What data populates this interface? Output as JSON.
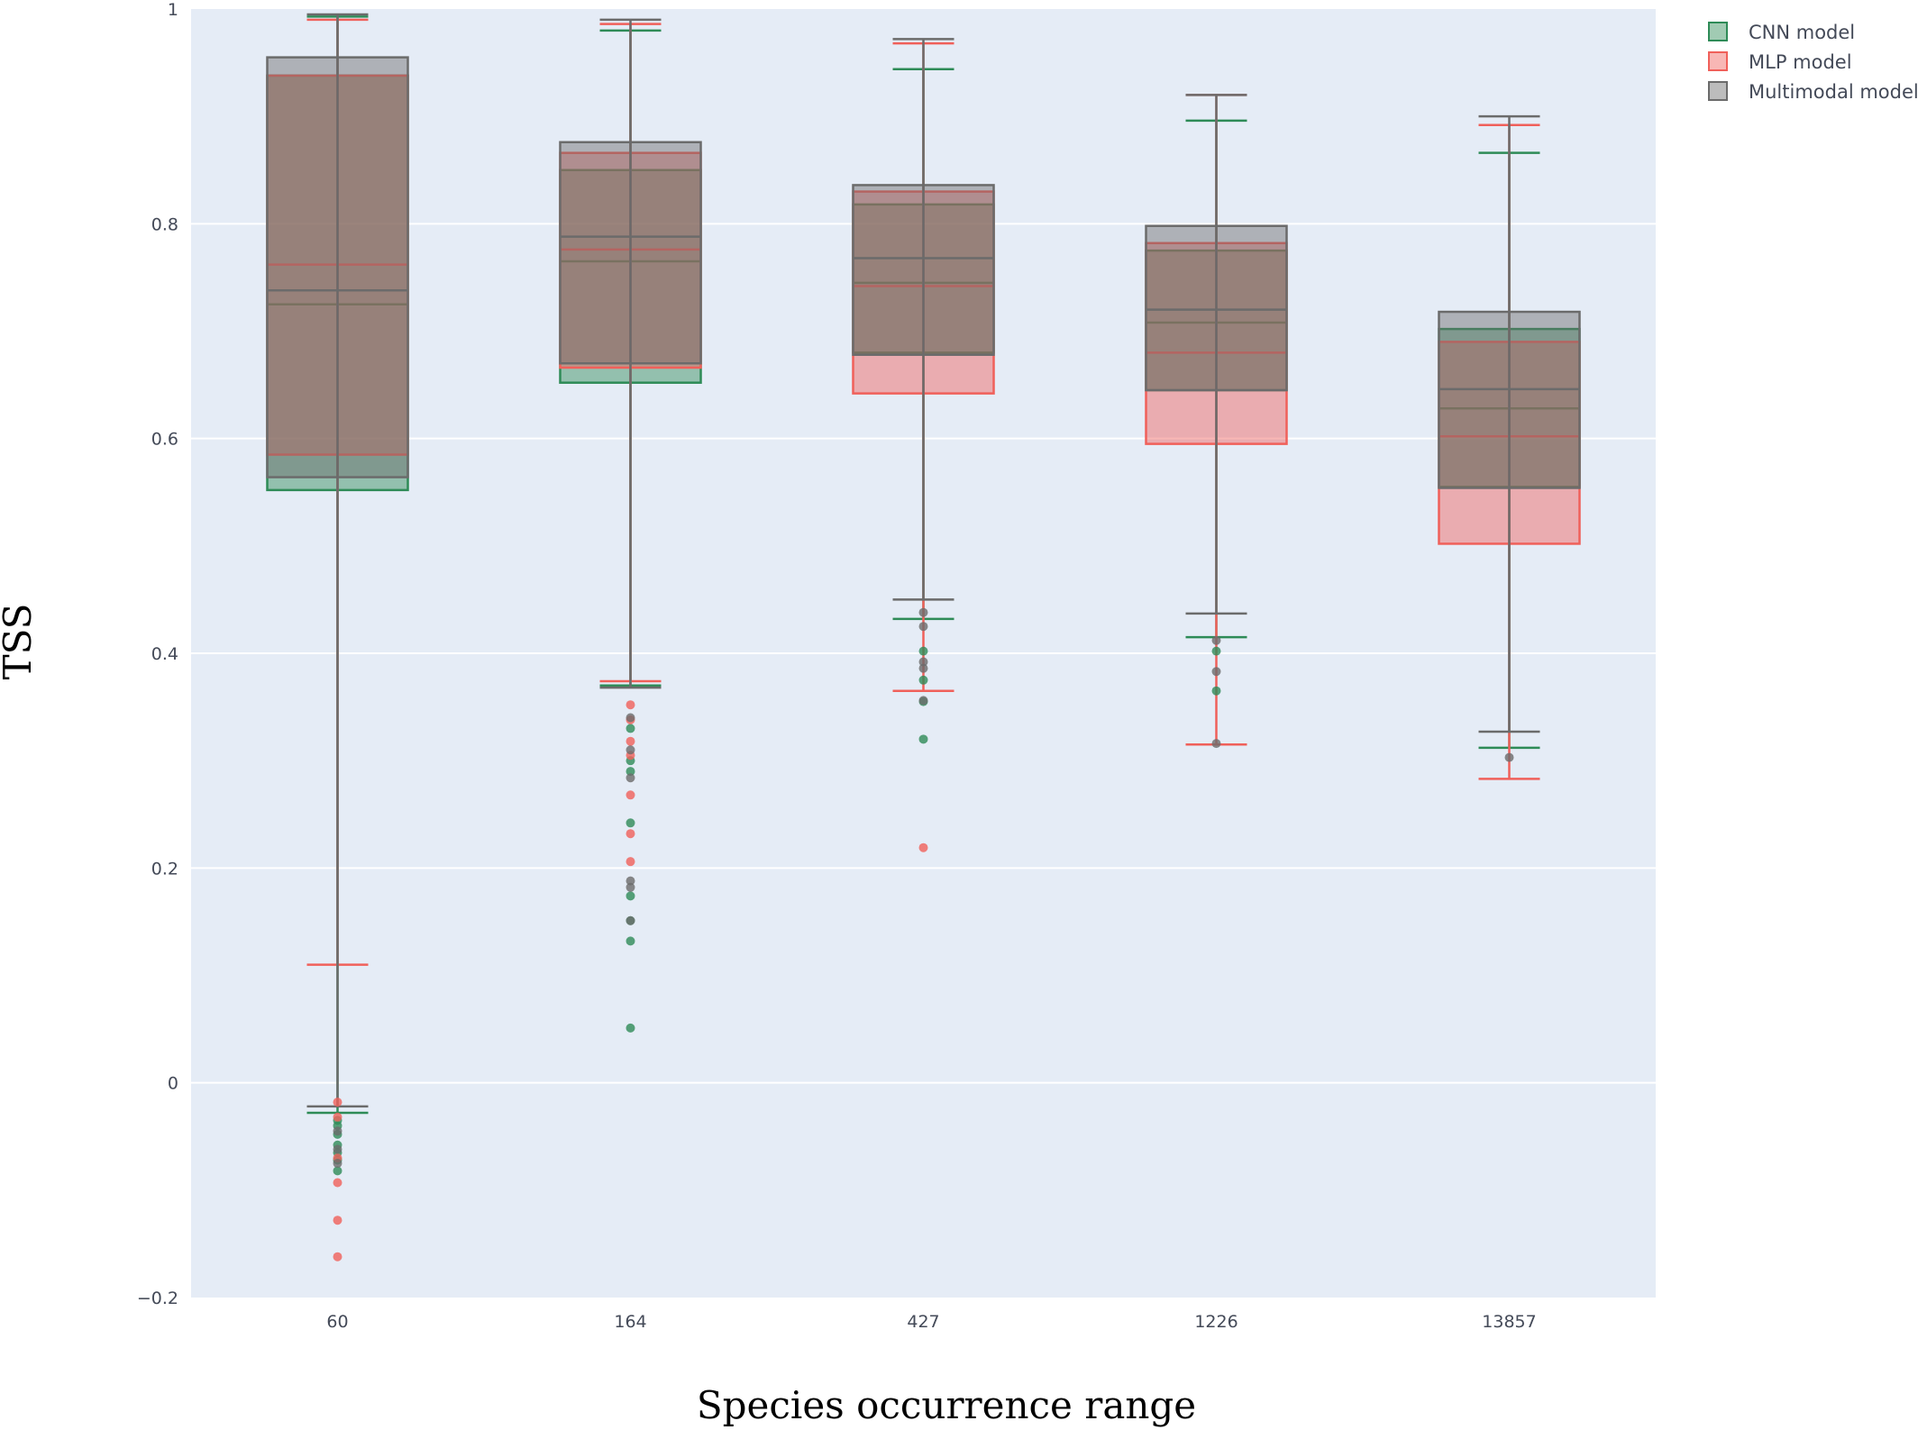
{
  "chart_data": {
    "type": "box",
    "xlabel": "Species occurrence range",
    "ylabel": "TSS",
    "categories": [
      "60",
      "164",
      "427",
      "1226",
      "13857"
    ],
    "ylim": [
      -0.2,
      1.0
    ],
    "yticks": [
      {
        "value": -0.2,
        "label": "−0.2"
      },
      {
        "value": 0,
        "label": "0"
      },
      {
        "value": 0.2,
        "label": "0.2"
      },
      {
        "value": 0.4,
        "label": "0.4"
      },
      {
        "value": 0.6,
        "label": "0.6"
      },
      {
        "value": 0.8,
        "label": "0.8"
      },
      {
        "value": 1.0,
        "label": "1"
      }
    ],
    "grid": true,
    "legend_position": "top-right",
    "series": [
      {
        "name": "CNN model",
        "color": "#2e8b57",
        "boxes": [
          {
            "category": "60",
            "lower_fence": -0.028,
            "q1": 0.552,
            "median": 0.725,
            "q3": 0.938,
            "upper_fence": 0.993,
            "outliers": [
              -0.035,
              -0.04,
              -0.048,
              -0.058,
              -0.065,
              -0.072,
              -0.082
            ]
          },
          {
            "category": "164",
            "lower_fence": 0.37,
            "q1": 0.652,
            "median": 0.765,
            "q3": 0.85,
            "upper_fence": 0.98,
            "outliers": [
              0.33,
              0.3,
              0.29,
              0.242,
              0.174,
              0.151,
              0.132,
              0.051
            ]
          },
          {
            "category": "427",
            "lower_fence": 0.432,
            "q1": 0.68,
            "median": 0.745,
            "q3": 0.818,
            "upper_fence": 0.944,
            "outliers": [
              0.402,
              0.375,
              0.355,
              0.32
            ]
          },
          {
            "category": "1226",
            "lower_fence": 0.415,
            "q1": 0.645,
            "median": 0.708,
            "q3": 0.775,
            "upper_fence": 0.896,
            "outliers": [
              0.402,
              0.365
            ]
          },
          {
            "category": "13857",
            "lower_fence": 0.312,
            "q1": 0.555,
            "median": 0.628,
            "q3": 0.702,
            "upper_fence": 0.866,
            "outliers": []
          }
        ]
      },
      {
        "name": "MLP model",
        "color": "#f0605a",
        "boxes": [
          {
            "category": "60",
            "lower_fence": 0.11,
            "q1": 0.585,
            "median": 0.762,
            "q3": 0.938,
            "upper_fence": 0.99,
            "outliers": [
              -0.018,
              -0.032,
              -0.07,
              -0.093,
              -0.128,
              -0.162
            ]
          },
          {
            "category": "164",
            "lower_fence": 0.374,
            "q1": 0.666,
            "median": 0.776,
            "q3": 0.866,
            "upper_fence": 0.986,
            "outliers": [
              0.352,
              0.338,
              0.318,
              0.305,
              0.268,
              0.232,
              0.206
            ]
          },
          {
            "category": "427",
            "lower_fence": 0.365,
            "q1": 0.642,
            "median": 0.742,
            "q3": 0.83,
            "upper_fence": 0.968,
            "outliers": [
              0.219
            ]
          },
          {
            "category": "1226",
            "lower_fence": 0.315,
            "q1": 0.595,
            "median": 0.68,
            "q3": 0.782,
            "upper_fence": 0.92,
            "outliers": []
          },
          {
            "category": "13857",
            "lower_fence": 0.283,
            "q1": 0.502,
            "median": 0.602,
            "q3": 0.69,
            "upper_fence": 0.892,
            "outliers": []
          }
        ]
      },
      {
        "name": "Multimodal model",
        "color": "#6b6b6b",
        "boxes": [
          {
            "category": "60",
            "lower_fence": -0.022,
            "q1": 0.564,
            "median": 0.738,
            "q3": 0.955,
            "upper_fence": 0.995,
            "outliers": [
              -0.045,
              -0.062,
              -0.075
            ]
          },
          {
            "category": "164",
            "lower_fence": 0.368,
            "q1": 0.67,
            "median": 0.788,
            "q3": 0.876,
            "upper_fence": 0.99,
            "outliers": [
              0.34,
              0.31,
              0.284,
              0.188,
              0.182,
              0.151
            ]
          },
          {
            "category": "427",
            "lower_fence": 0.45,
            "q1": 0.678,
            "median": 0.768,
            "q3": 0.836,
            "upper_fence": 0.972,
            "outliers": [
              0.438,
              0.425,
              0.392,
              0.386,
              0.356
            ]
          },
          {
            "category": "1226",
            "lower_fence": 0.437,
            "q1": 0.645,
            "median": 0.72,
            "q3": 0.798,
            "upper_fence": 0.92,
            "outliers": [
              0.412,
              0.383,
              0.316
            ]
          },
          {
            "category": "13857",
            "lower_fence": 0.327,
            "q1": 0.554,
            "median": 0.646,
            "q3": 0.718,
            "upper_fence": 0.9,
            "outliers": [
              0.303
            ]
          }
        ]
      }
    ]
  }
}
